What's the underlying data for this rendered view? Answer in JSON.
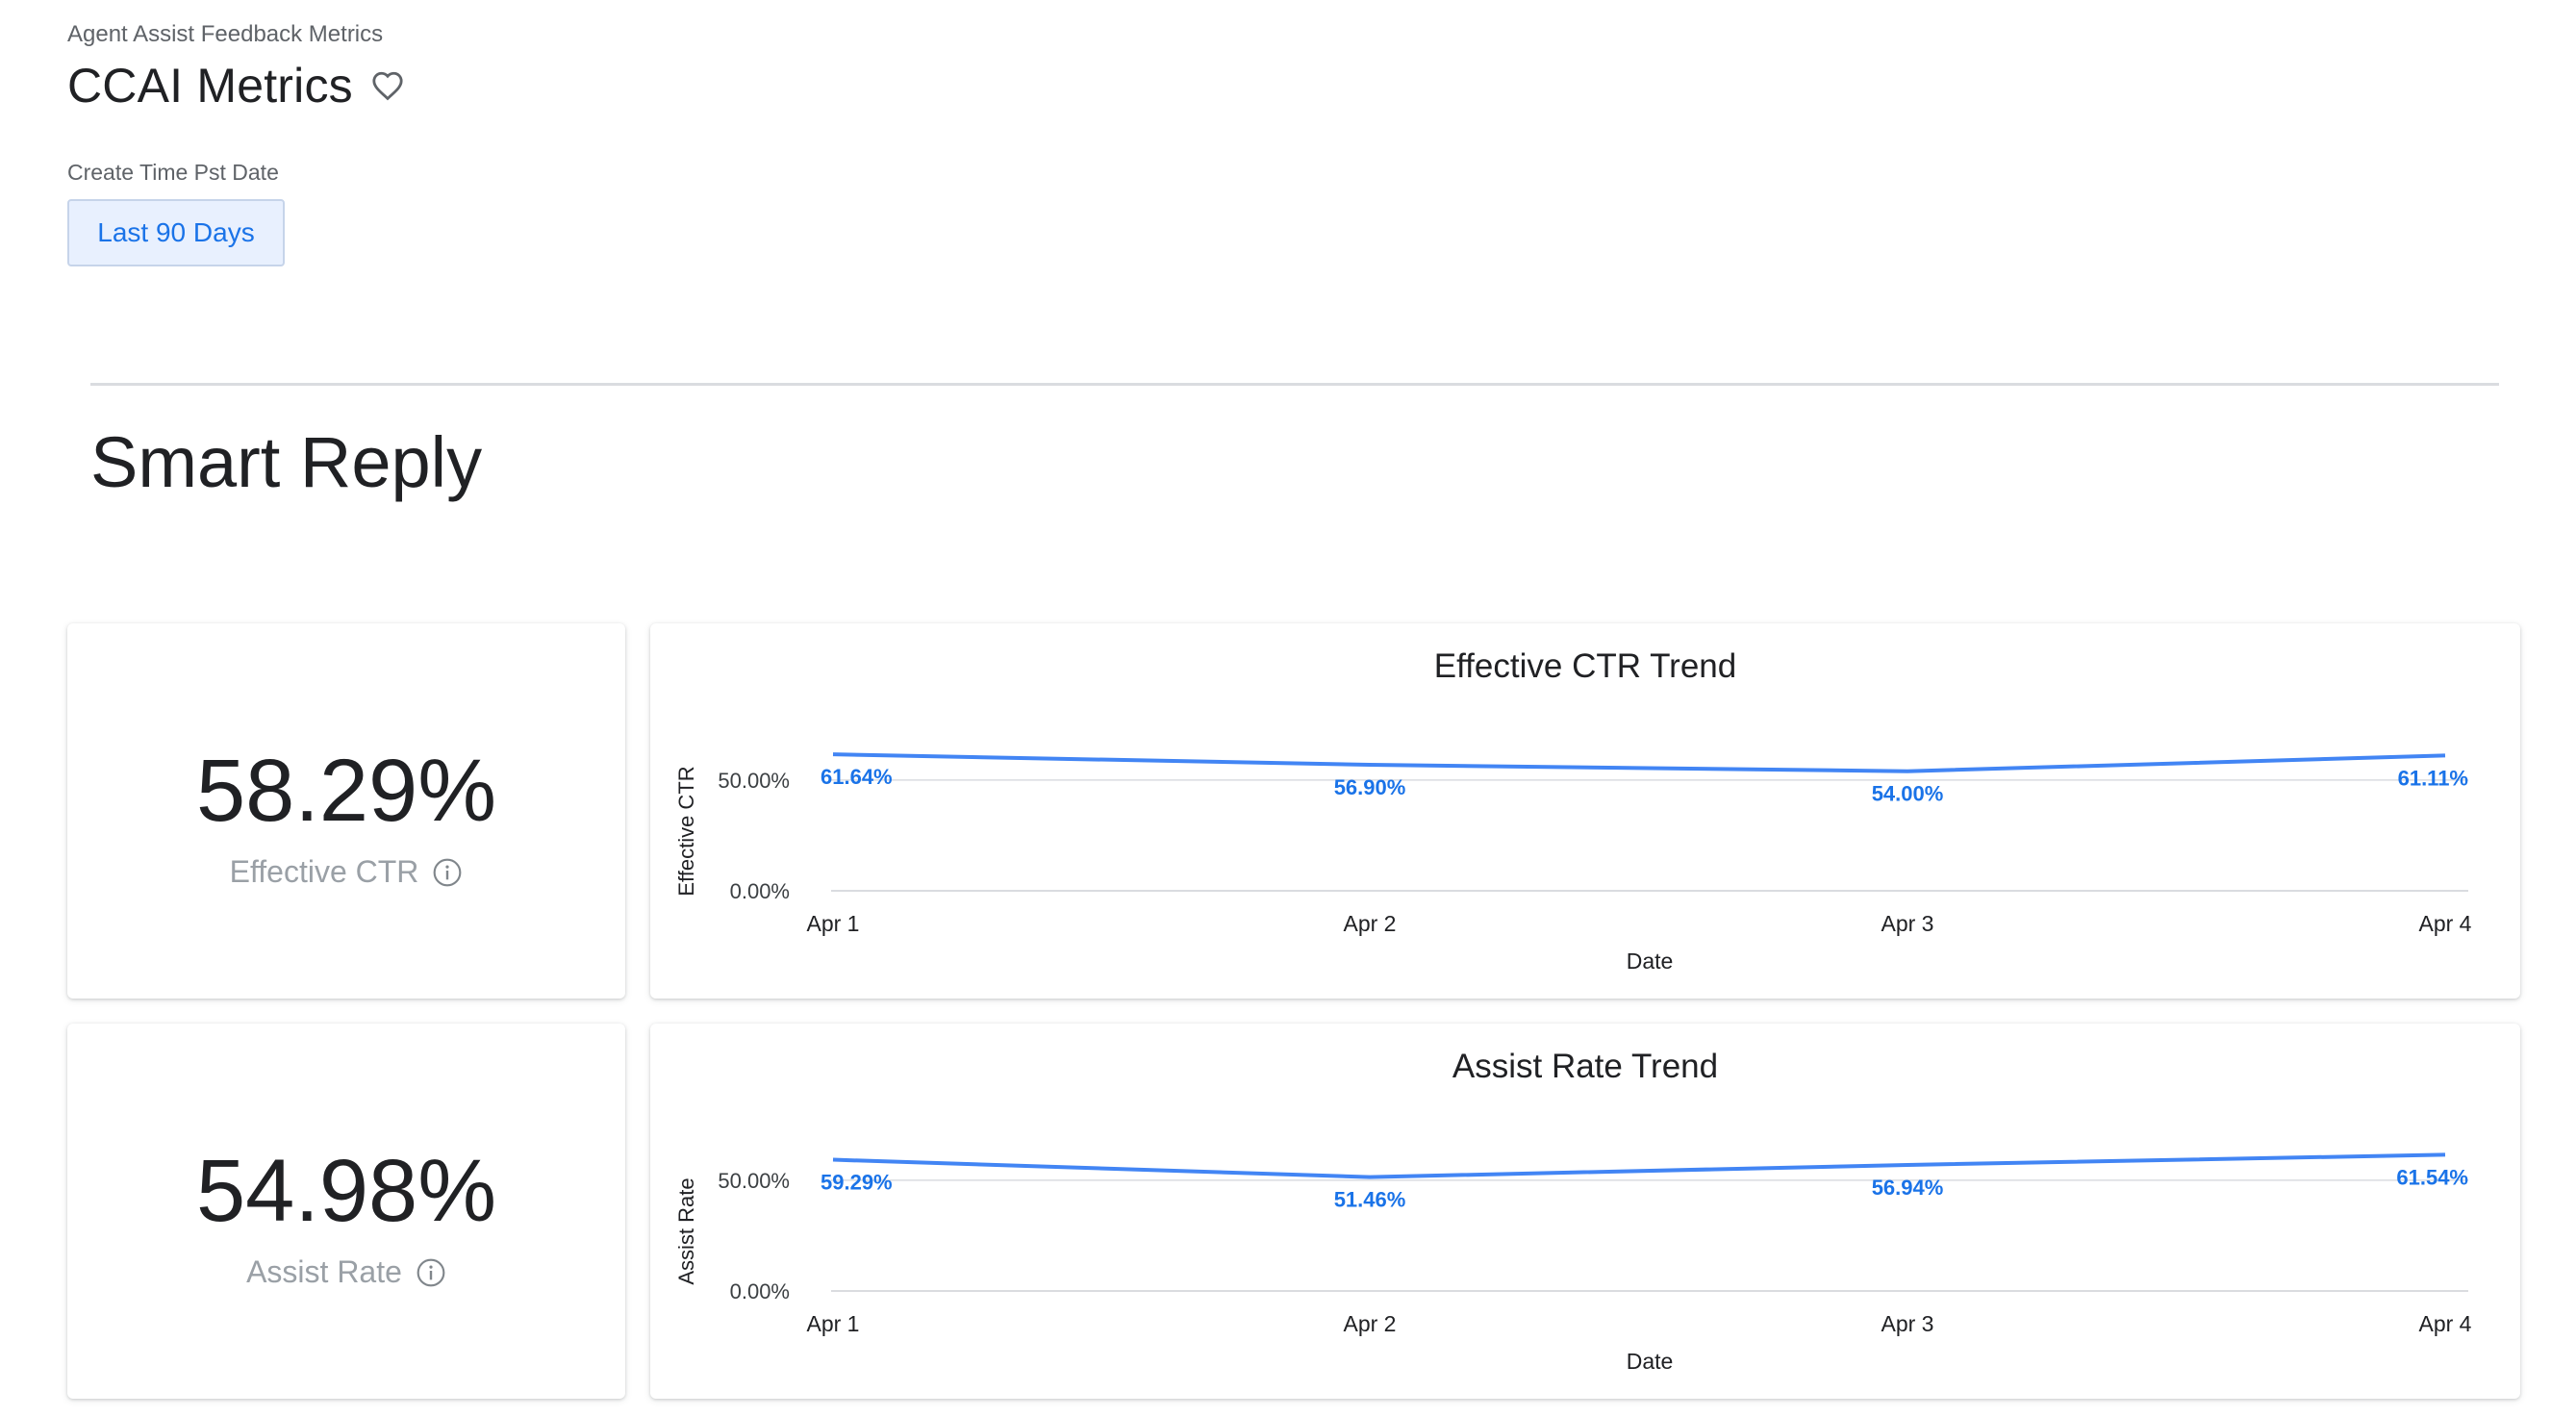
{
  "breadcrumb": "Agent Assist Feedback Metrics",
  "title": "CCAI Metrics",
  "icons": {
    "favorite": "heart-outline-icon",
    "info": "info-icon"
  },
  "filter": {
    "label": "Create Time Pst Date",
    "value": "Last 90 Days"
  },
  "section": {
    "title": "Smart Reply"
  },
  "colors": {
    "accent": "#1a73e8",
    "line": "#4285f4",
    "grid": "#dadce0"
  },
  "kpis": [
    {
      "value": "58.29%",
      "label": "Effective CTR"
    },
    {
      "value": "54.98%",
      "label": "Assist Rate"
    }
  ],
  "chart_data": [
    {
      "type": "line",
      "title": "Effective CTR Trend",
      "xlabel": "Date",
      "ylabel": "Effective CTR",
      "categories": [
        "Apr 1",
        "Apr 2",
        "Apr 3",
        "Apr 4"
      ],
      "series": [
        {
          "values": [
            61.64,
            56.9,
            54.0,
            61.11
          ],
          "labels": [
            "61.64%",
            "56.90%",
            "54.00%",
            "61.11%"
          ]
        }
      ],
      "yticks": [
        "0.00%",
        "50.00%"
      ],
      "ytick_values": [
        0,
        50
      ],
      "ylim": [
        0,
        73
      ],
      "grid": true,
      "legend": "none"
    },
    {
      "type": "line",
      "title": "Assist Rate Trend",
      "xlabel": "Date",
      "ylabel": "Assist Rate",
      "categories": [
        "Apr 1",
        "Apr 2",
        "Apr 3",
        "Apr 4"
      ],
      "series": [
        {
          "values": [
            59.29,
            51.46,
            56.94,
            61.54
          ],
          "labels": [
            "59.29%",
            "51.46%",
            "56.94%",
            "61.54%"
          ]
        }
      ],
      "yticks": [
        "0.00%",
        "50.00%"
      ],
      "ytick_values": [
        0,
        50
      ],
      "ylim": [
        0,
        73
      ],
      "grid": true,
      "legend": "none"
    }
  ]
}
